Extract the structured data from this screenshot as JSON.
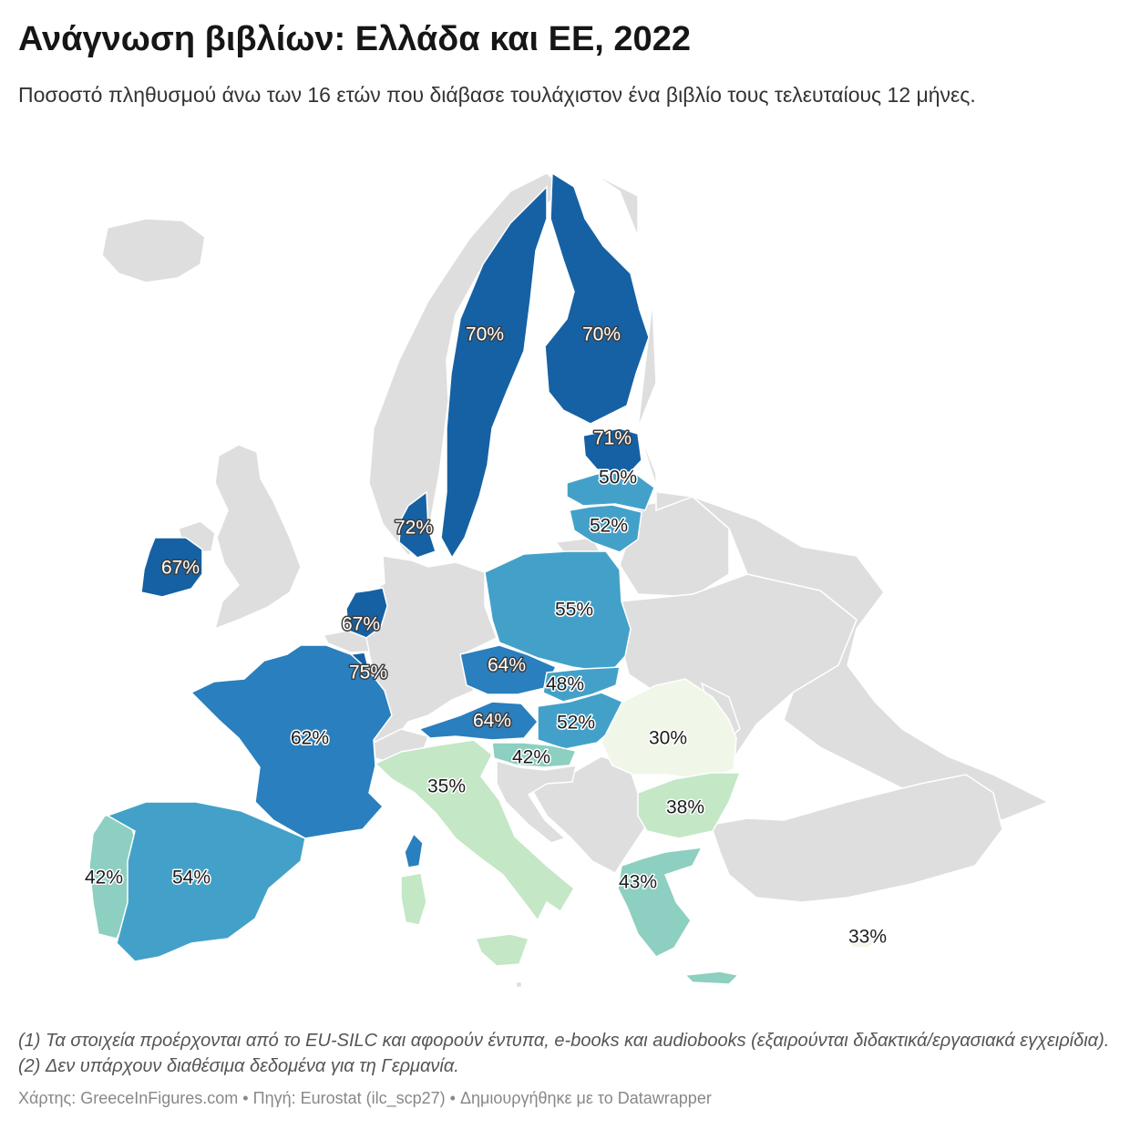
{
  "header": {
    "title": "Ανάγνωση βιβλίων: Ελλάδα και ΕΕ, 2022",
    "subtitle": "Ποσοστό πληθυσμού άνω των 16 ετών που διάβασε τουλάχιστον ένα βιβλίο τους τελευταίους 12 μήνες."
  },
  "notes": "(1) Τα στοιχεία προέρχονται από το EU-SILC και αφορούν έντυπα, e-books και audiobooks (εξαιρούνται διδακτικά/εργασιακά εγχειρίδια). (2) Δεν υπάρχουν διαθέσιμα δεδομένα για τη Γερμανία.",
  "footer": "Χάρτης: GreeceInFigures.com • Πηγή: Eurostat (ilc_scp27) • Δημιουργήθηκε με το Datawrapper",
  "colors": {
    "no_data": "#dedede",
    "border": "#ffffff",
    "scale": [
      "#f0f7e8",
      "#c4e7c6",
      "#8dcfc0",
      "#43a1c9",
      "#2a7fbe",
      "#1561a4"
    ]
  },
  "chart_data": {
    "type": "choropleth",
    "unit": "%",
    "regions": [
      {
        "id": "SE",
        "value": 70,
        "label": "70%"
      },
      {
        "id": "FI",
        "value": 70,
        "label": "70%"
      },
      {
        "id": "EE",
        "value": 71,
        "label": "71%"
      },
      {
        "id": "LV",
        "value": 50,
        "label": "50%"
      },
      {
        "id": "LT",
        "value": 52,
        "label": "52%"
      },
      {
        "id": "DK",
        "value": 72,
        "label": "72%"
      },
      {
        "id": "IE",
        "value": 67,
        "label": "67%"
      },
      {
        "id": "NL",
        "value": 67,
        "label": "67%"
      },
      {
        "id": "LU",
        "value": 75,
        "label": "75%"
      },
      {
        "id": "PL",
        "value": 55,
        "label": "55%"
      },
      {
        "id": "CZ",
        "value": 64,
        "label": "64%"
      },
      {
        "id": "SK",
        "value": 48,
        "label": "48%"
      },
      {
        "id": "AT",
        "value": 64,
        "label": "64%"
      },
      {
        "id": "HU",
        "value": 52,
        "label": "52%"
      },
      {
        "id": "FR",
        "value": 62,
        "label": "62%"
      },
      {
        "id": "SI",
        "value": 42,
        "label": "42%"
      },
      {
        "id": "RO",
        "value": 30,
        "label": "30%"
      },
      {
        "id": "IT",
        "value": 35,
        "label": "35%"
      },
      {
        "id": "BG",
        "value": 38,
        "label": "38%"
      },
      {
        "id": "PT",
        "value": 42,
        "label": "42%"
      },
      {
        "id": "ES",
        "value": 54,
        "label": "54%"
      },
      {
        "id": "GR",
        "value": 43,
        "label": "43%"
      },
      {
        "id": "CY",
        "value": 33,
        "label": "33%"
      },
      {
        "id": "BE",
        "value": null,
        "label": ""
      },
      {
        "id": "HR",
        "value": null,
        "label": ""
      },
      {
        "id": "MT",
        "value": null,
        "label": ""
      }
    ]
  }
}
